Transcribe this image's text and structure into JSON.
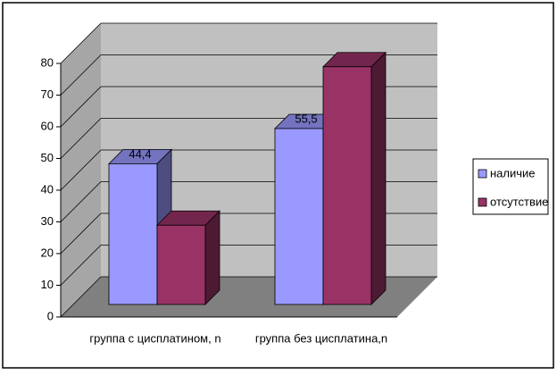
{
  "chart_data": {
    "type": "bar",
    "categories": [
      "группа с цисплатином, n",
      "группа без цисплатина,n"
    ],
    "series": [
      {
        "name": "наличие",
        "color": "#9999ff",
        "values": [
          44.4,
          55.5
        ],
        "value_labels": [
          "44,4",
          "55,5"
        ]
      },
      {
        "name": "отсутствие",
        "color": "#993366",
        "values": [
          25,
          75
        ]
      }
    ],
    "ylim": [
      0,
      80
    ],
    "yticks": [
      0,
      10,
      20,
      30,
      40,
      50,
      60,
      70,
      80
    ],
    "grid": true,
    "legend": "right"
  }
}
